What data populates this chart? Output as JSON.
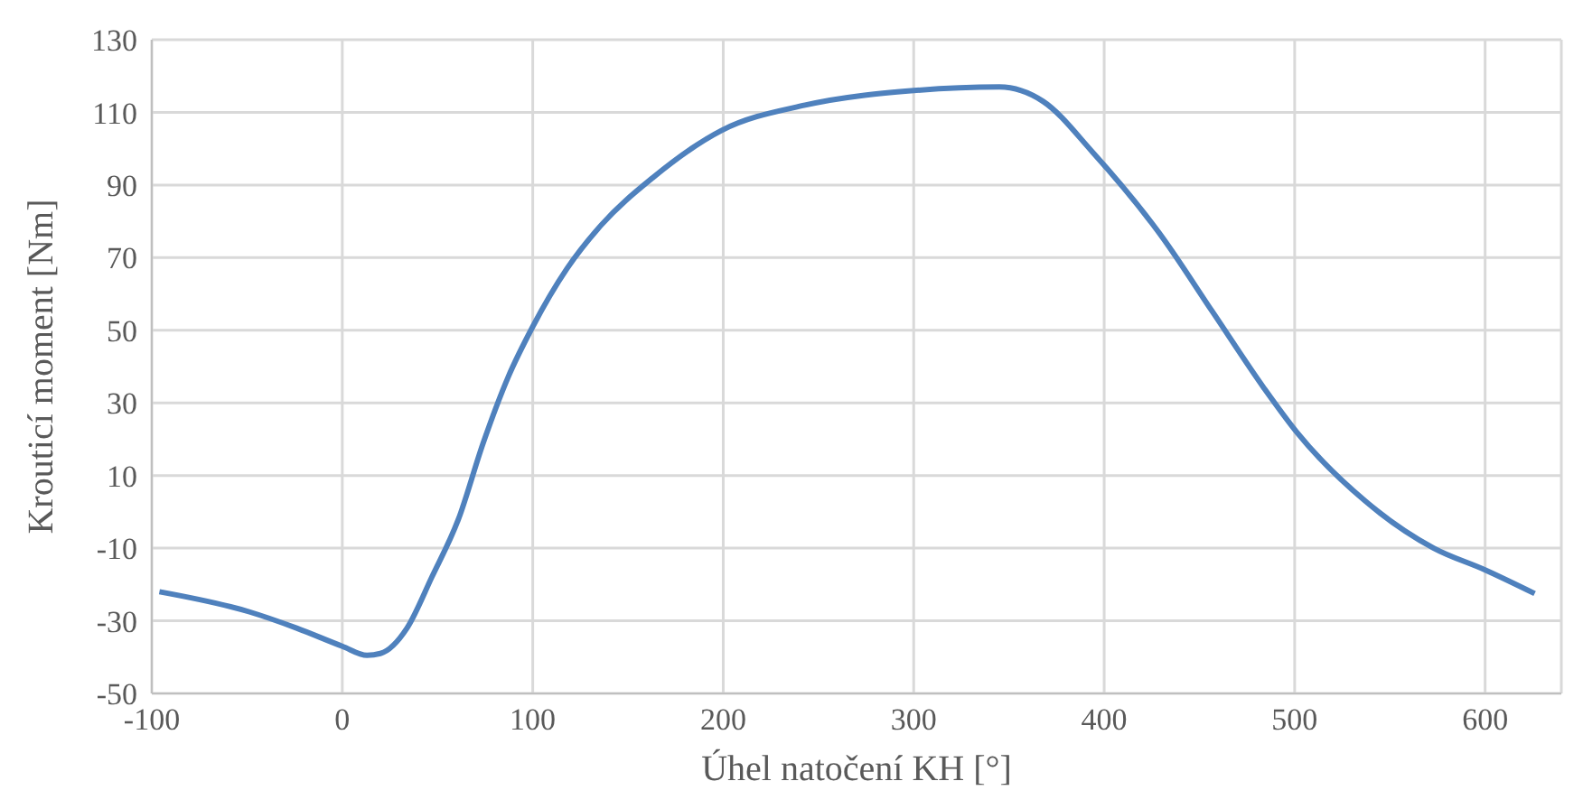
{
  "chart_data": {
    "type": "line",
    "xlabel": "Úhel natočení KH [°]",
    "ylabel": "Krouticí moment [Nm]",
    "x": [
      -96,
      -49,
      -24,
      0,
      13,
      20,
      34,
      47,
      61,
      74,
      87,
      100,
      118,
      136,
      163,
      199,
      243,
      300,
      345,
      368,
      394,
      430,
      457,
      484,
      501,
      537,
      573,
      600,
      626
    ],
    "series": [
      {
        "color": "#4f81bd",
        "values": [
          -22,
          -27.5,
          -32,
          -37,
          -39.5,
          -39,
          -32,
          -18,
          -2,
          19,
          37,
          51,
          67,
          79,
          92,
          105,
          112,
          116,
          117,
          113,
          99,
          76,
          55,
          34,
          22,
          3,
          -10,
          -16,
          -22.5
        ]
      }
    ],
    "xlim": [
      -100,
      640
    ],
    "xticks": [
      -100,
      0,
      100,
      200,
      300,
      400,
      500,
      600
    ],
    "ylim": [
      -50,
      130
    ],
    "yticks": [
      -50,
      -30,
      -10,
      10,
      30,
      50,
      70,
      90,
      110,
      130
    ],
    "grid": true,
    "marker": "none",
    "line_style": "solid"
  }
}
